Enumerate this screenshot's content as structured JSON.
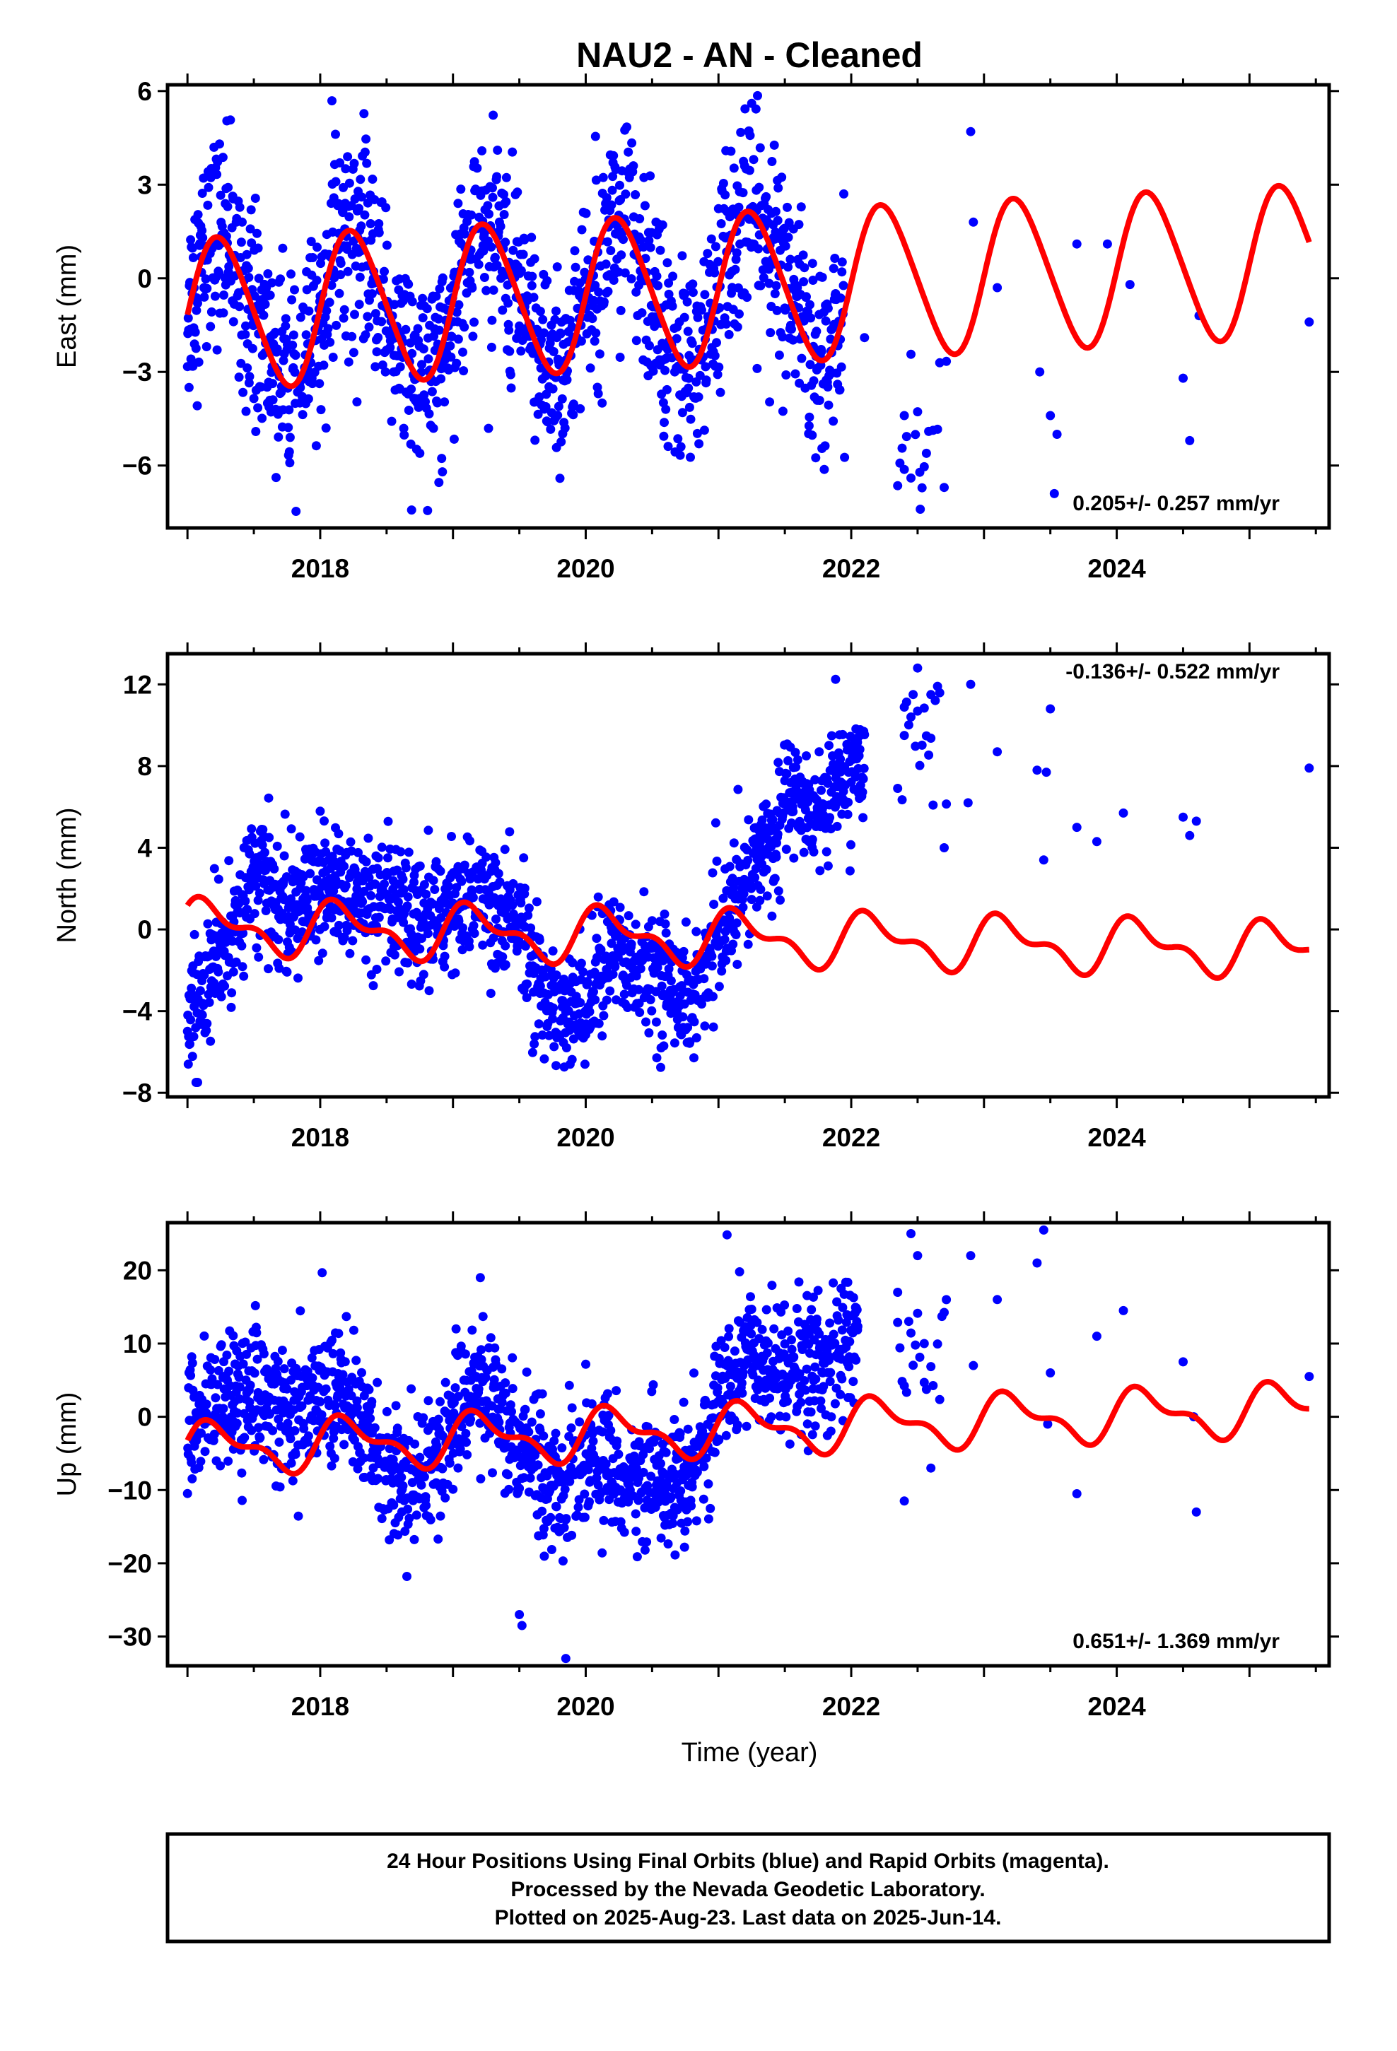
{
  "figure": {
    "title": "NAU2  - AN - Cleaned",
    "xlabel": "Time (year)",
    "footer": [
      "24 Hour Positions Using Final Orbits (blue) and Rapid Orbits (magenta).",
      "Processed by the Nevada Geodetic Laboratory.",
      "Plotted on 2025-Aug-23. Last data on 2025-Jun-14."
    ],
    "colors": {
      "points": "#0000ff",
      "model": "#ff0000",
      "frame": "#000000"
    }
  },
  "chart_data": [
    {
      "type": "scatter",
      "component": "east",
      "ylabel": "East (mm)",
      "rate_label": "0.205+/- 0.257 mm/yr",
      "xlim": [
        2016.85,
        2025.6
      ],
      "ylim": [
        -8,
        6.2
      ],
      "xticks": [
        2018,
        2020,
        2022,
        2024
      ],
      "yticks": [
        -6,
        -3,
        0,
        3,
        6
      ],
      "yticklabels": [
        "−6",
        "−3",
        "0",
        "3",
        "6"
      ],
      "model": {
        "amp": 2.4,
        "rate": 0.205,
        "phase": 0.0,
        "offset": -0.35,
        "harmonic2": 0.25,
        "x_end": 2025.45
      },
      "series": [
        {
          "kind": "daily-dense",
          "spans": [
            [
              2017.0,
              2021.95
            ],
            [
              2022.35,
              2022.72
            ]
          ],
          "values_described": "seasonal cloud around model, scatter ±2.5 mm",
          "sparse_points": [
            [
              2022.1,
              -1.9
            ],
            [
              2022.4,
              -4.4
            ],
            [
              2022.45,
              -6.4
            ],
            [
              2022.52,
              -7.4
            ],
            [
              2022.9,
              4.7
            ],
            [
              2022.92,
              1.8
            ],
            [
              2023.1,
              -0.3
            ],
            [
              2023.42,
              -3.0
            ],
            [
              2023.5,
              -4.4
            ],
            [
              2023.55,
              -5.0
            ],
            [
              2023.53,
              -6.9
            ],
            [
              2023.7,
              1.1
            ],
            [
              2023.93,
              1.1
            ],
            [
              2024.1,
              -0.2
            ],
            [
              2024.5,
              -3.2
            ],
            [
              2024.55,
              -5.2
            ],
            [
              2024.62,
              -1.2
            ],
            [
              2025.45,
              -1.4
            ]
          ]
        }
      ]
    },
    {
      "type": "scatter",
      "component": "north",
      "ylabel": "North (mm)",
      "rate_label": "-0.136+/- 0.522 mm/yr",
      "xlim": [
        2016.85,
        2025.6
      ],
      "ylim": [
        -8.2,
        13.5
      ],
      "xticks": [
        2018,
        2020,
        2022,
        2024
      ],
      "yticks": [
        -8,
        -4,
        0,
        4,
        8,
        12
      ],
      "yticklabels": [
        "−8",
        "−4",
        "0",
        "4",
        "8",
        "12"
      ],
      "model": {
        "amp": 1.1,
        "rate": -0.136,
        "phase": 0.5,
        "offset": -0.4,
        "harmonic2": 0.6,
        "x_end": 2025.45
      },
      "series": [
        {
          "kind": "daily-dense",
          "trend_segments": [
            [
              2017.0,
              -6.5
            ],
            [
              2017.5,
              2.5
            ],
            [
              2018.0,
              1.0
            ],
            [
              2019.5,
              0.5
            ],
            [
              2019.6,
              -2.0
            ],
            [
              2020.0,
              -4.5
            ],
            [
              2020.2,
              -1.5
            ],
            [
              2020.8,
              -2.5
            ],
            [
              2021.1,
              0.0
            ],
            [
              2021.5,
              6.5
            ],
            [
              2022.0,
              7.5
            ]
          ],
          "spans": [
            [
              2017.0,
              2022.1
            ],
            [
              2022.35,
              2022.72
            ]
          ],
          "sparse_points": [
            [
              2022.4,
              9.5
            ],
            [
              2022.5,
              12.8
            ],
            [
              2022.6,
              11.5
            ],
            [
              2022.7,
              4.0
            ],
            [
              2022.9,
              12.0
            ],
            [
              2022.88,
              6.2
            ],
            [
              2023.1,
              8.7
            ],
            [
              2023.4,
              7.8
            ],
            [
              2023.45,
              3.4
            ],
            [
              2023.5,
              10.8
            ],
            [
              2023.47,
              7.7
            ],
            [
              2023.7,
              5.0
            ],
            [
              2023.85,
              4.3
            ],
            [
              2024.05,
              5.7
            ],
            [
              2024.5,
              5.5
            ],
            [
              2024.6,
              5.3
            ],
            [
              2024.55,
              4.6
            ],
            [
              2025.45,
              7.9
            ]
          ]
        }
      ]
    },
    {
      "type": "scatter",
      "component": "up",
      "ylabel": "Up (mm)",
      "rate_label": "0.651+/- 1.369 mm/yr",
      "xlim": [
        2016.85,
        2025.6
      ],
      "ylim": [
        -34,
        26.5
      ],
      "xticks": [
        2018,
        2020,
        2022,
        2024
      ],
      "yticks": [
        -30,
        -20,
        -10,
        0,
        10,
        20
      ],
      "yticklabels": [
        "−30",
        "−20",
        "−10",
        "0",
        "10",
        "20"
      ],
      "model": {
        "amp": 3.0,
        "rate": 0.651,
        "phase": 0.2,
        "offset": -1.8,
        "harmonic2": 1.5,
        "x_end": 2025.45
      },
      "series": [
        {
          "kind": "daily-dense",
          "trend_segments": [
            [
              2017.0,
              -2.0
            ],
            [
              2017.5,
              5.0
            ],
            [
              2018.2,
              2.0
            ],
            [
              2018.6,
              -8.0
            ],
            [
              2019.2,
              3.0
            ],
            [
              2019.7,
              -6.0
            ],
            [
              2020.1,
              -8.0
            ],
            [
              2020.7,
              -8.0
            ],
            [
              2021.2,
              8.0
            ],
            [
              2021.5,
              5.0
            ],
            [
              2021.9,
              10.0
            ]
          ],
          "spans": [
            [
              2017.0,
              2022.05
            ],
            [
              2022.35,
              2022.72
            ]
          ],
          "sparse_points": [
            [
              2019.5,
              -27.0
            ],
            [
              2019.52,
              -28.5
            ],
            [
              2019.85,
              -33.0
            ],
            [
              2022.35,
              17.0
            ],
            [
              2022.45,
              25.0
            ],
            [
              2022.5,
              22.0
            ],
            [
              2022.55,
              10.0
            ],
            [
              2022.6,
              -7.0
            ],
            [
              2022.4,
              -11.5
            ],
            [
              2022.9,
              22.0
            ],
            [
              2022.92,
              7.0
            ],
            [
              2023.1,
              16.0
            ],
            [
              2023.4,
              21.0
            ],
            [
              2023.45,
              25.5
            ],
            [
              2023.5,
              6.0
            ],
            [
              2023.48,
              -1.0
            ],
            [
              2023.7,
              -10.5
            ],
            [
              2023.85,
              11.0
            ],
            [
              2024.05,
              14.5
            ],
            [
              2024.5,
              7.5
            ],
            [
              2024.6,
              -13.0
            ],
            [
              2024.58,
              0.0
            ],
            [
              2025.45,
              5.5
            ]
          ]
        }
      ]
    }
  ]
}
